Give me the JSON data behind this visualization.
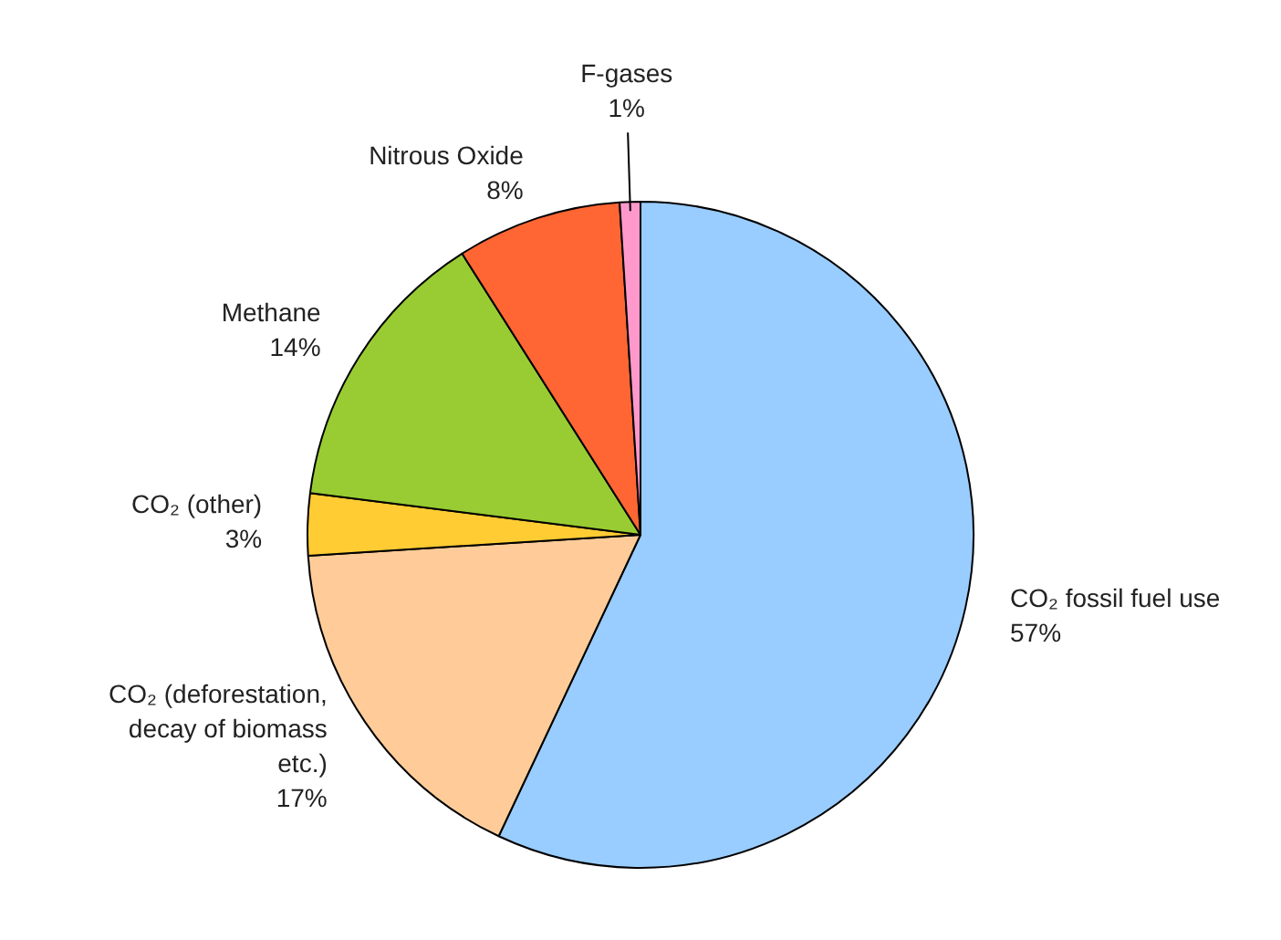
{
  "chart_data": {
    "type": "pie",
    "categories": [
      "CO₂ fossil fuel use",
      "CO₂ (deforestation,\ndecay of biomass\netc.)",
      "CO₂ (other)",
      "Methane",
      "Nitrous Oxide",
      "F-gases"
    ],
    "values": [
      57,
      17,
      3,
      14,
      8,
      1
    ],
    "value_labels": [
      "57%",
      "17%",
      "3%",
      "14%",
      "8%",
      "1%"
    ],
    "colors": [
      "#99ccff",
      "#ffcc99",
      "#ffcc33",
      "#99cc33",
      "#ff6633",
      "#ff99cc"
    ],
    "legend": false
  }
}
